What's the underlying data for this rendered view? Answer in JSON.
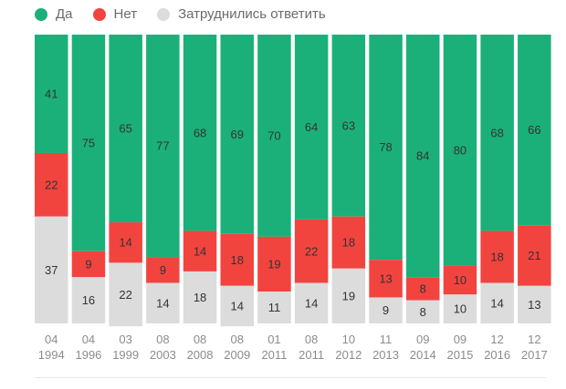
{
  "legend": [
    {
      "label": "Да",
      "color": "#1bb07a"
    },
    {
      "label": "Нет",
      "color": "#f2443f"
    },
    {
      "label": "Затруднились ответить",
      "color": "#dcdcdc"
    }
  ],
  "chart_data": {
    "type": "bar",
    "stacked": true,
    "categories": [
      [
        "04",
        "1994"
      ],
      [
        "04",
        "1996"
      ],
      [
        "03",
        "1999"
      ],
      [
        "08",
        "2003"
      ],
      [
        "08",
        "2008"
      ],
      [
        "08",
        "2009"
      ],
      [
        "01",
        "2011"
      ],
      [
        "08",
        "2011"
      ],
      [
        "10",
        "2012"
      ],
      [
        "11",
        "2013"
      ],
      [
        "09",
        "2014"
      ],
      [
        "09",
        "2015"
      ],
      [
        "12",
        "2016"
      ],
      [
        "12",
        "2017"
      ]
    ],
    "series": [
      {
        "name": "Да",
        "color": "#1bb07a",
        "values": [
          41,
          75,
          65,
          77,
          68,
          69,
          70,
          64,
          63,
          78,
          84,
          80,
          68,
          66
        ]
      },
      {
        "name": "Нет",
        "color": "#f2443f",
        "values": [
          22,
          9,
          14,
          9,
          14,
          18,
          19,
          22,
          18,
          13,
          8,
          10,
          18,
          21
        ]
      },
      {
        "name": "Затруднились ответить",
        "color": "#dcdcdc",
        "values": [
          37,
          16,
          22,
          14,
          18,
          14,
          11,
          14,
          19,
          9,
          8,
          10,
          14,
          13
        ]
      }
    ],
    "ylim": [
      0,
      100
    ],
    "grid": false,
    "legend_position": "top-left"
  }
}
